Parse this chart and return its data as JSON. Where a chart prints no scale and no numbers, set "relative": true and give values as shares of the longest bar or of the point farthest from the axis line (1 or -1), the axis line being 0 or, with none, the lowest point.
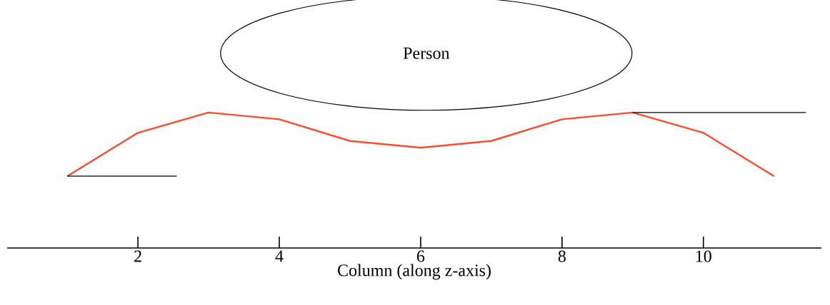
{
  "chart_data": {
    "type": "line",
    "relative": true,
    "xlabel": "Column (along z-axis)",
    "x": [
      1,
      2,
      3,
      4,
      5,
      6,
      7,
      8,
      9,
      10,
      11
    ],
    "xlim": [
      0.15,
      11.67
    ],
    "xticks": [
      2,
      4,
      6,
      8,
      10
    ],
    "annotations": [
      "Person"
    ],
    "series": [
      {
        "color": "#ff4b2b",
        "values": [
          0.53,
          0.85,
          1,
          0.95,
          0.79,
          0.74,
          0.79,
          0.95,
          1,
          0.85,
          0.53
        ]
      },
      {
        "color": "#000000",
        "x": [
          1,
          2.55
        ],
        "values": [
          0.53,
          0.53
        ]
      },
      {
        "color": "#000000",
        "x": [
          9,
          11.45
        ],
        "values": [
          1,
          1
        ]
      }
    ]
  }
}
